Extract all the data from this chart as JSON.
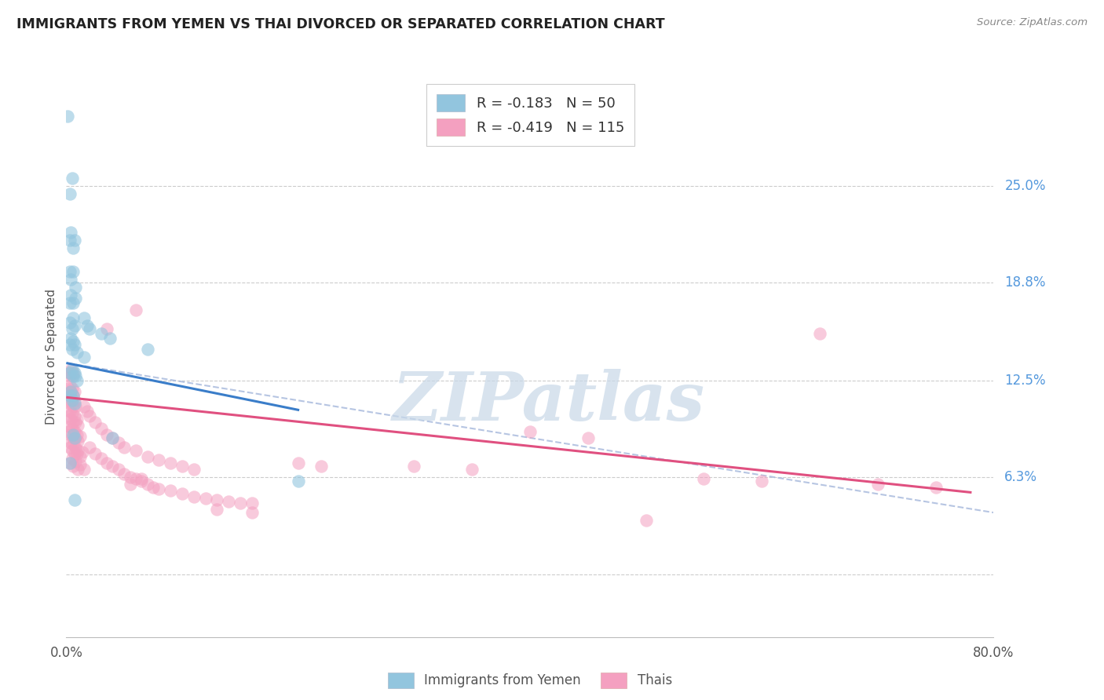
{
  "title": "IMMIGRANTS FROM YEMEN VS THAI DIVORCED OR SEPARATED CORRELATION CHART",
  "source": "Source: ZipAtlas.com",
  "ylabel": "Divorced or Separated",
  "legend1_label": "Immigrants from Yemen",
  "legend2_label": "Thais",
  "legend1_r": "-0.183",
  "legend1_n": "50",
  "legend2_r": "-0.419",
  "legend2_n": "115",
  "color_blue": "#92c5de",
  "color_pink": "#f4a0c0",
  "line_blue": "#3a7dc9",
  "line_pink": "#e05080",
  "line_dash": "#aabbdd",
  "watermark_text": "ZIPatlas",
  "watermark_color": "#c8d8e8",
  "scatter_blue": [
    [
      0.001,
      0.295
    ],
    [
      0.003,
      0.245
    ],
    [
      0.005,
      0.255
    ],
    [
      0.003,
      0.215
    ],
    [
      0.004,
      0.22
    ],
    [
      0.006,
      0.21
    ],
    [
      0.007,
      0.215
    ],
    [
      0.003,
      0.195
    ],
    [
      0.004,
      0.19
    ],
    [
      0.006,
      0.195
    ],
    [
      0.008,
      0.185
    ],
    [
      0.003,
      0.175
    ],
    [
      0.004,
      0.18
    ],
    [
      0.006,
      0.175
    ],
    [
      0.008,
      0.178
    ],
    [
      0.003,
      0.162
    ],
    [
      0.005,
      0.158
    ],
    [
      0.006,
      0.165
    ],
    [
      0.007,
      0.16
    ],
    [
      0.003,
      0.148
    ],
    [
      0.004,
      0.152
    ],
    [
      0.005,
      0.145
    ],
    [
      0.006,
      0.15
    ],
    [
      0.007,
      0.148
    ],
    [
      0.009,
      0.143
    ],
    [
      0.003,
      0.13
    ],
    [
      0.005,
      0.132
    ],
    [
      0.006,
      0.128
    ],
    [
      0.007,
      0.13
    ],
    [
      0.008,
      0.128
    ],
    [
      0.009,
      0.125
    ],
    [
      0.003,
      0.115
    ],
    [
      0.004,
      0.118
    ],
    [
      0.005,
      0.112
    ],
    [
      0.006,
      0.115
    ],
    [
      0.007,
      0.11
    ],
    [
      0.015,
      0.165
    ],
    [
      0.018,
      0.16
    ],
    [
      0.02,
      0.158
    ],
    [
      0.03,
      0.155
    ],
    [
      0.038,
      0.152
    ],
    [
      0.015,
      0.14
    ],
    [
      0.007,
      0.088
    ],
    [
      0.006,
      0.09
    ],
    [
      0.003,
      0.072
    ],
    [
      0.07,
      0.145
    ],
    [
      0.2,
      0.06
    ],
    [
      0.007,
      0.048
    ],
    [
      0.04,
      0.088
    ]
  ],
  "scatter_pink": [
    [
      0.002,
      0.13
    ],
    [
      0.003,
      0.128
    ],
    [
      0.004,
      0.132
    ],
    [
      0.005,
      0.128
    ],
    [
      0.006,
      0.13
    ],
    [
      0.002,
      0.12
    ],
    [
      0.003,
      0.122
    ],
    [
      0.004,
      0.118
    ],
    [
      0.005,
      0.12
    ],
    [
      0.006,
      0.115
    ],
    [
      0.007,
      0.118
    ],
    [
      0.002,
      0.112
    ],
    [
      0.003,
      0.11
    ],
    [
      0.004,
      0.115
    ],
    [
      0.005,
      0.11
    ],
    [
      0.006,
      0.108
    ],
    [
      0.007,
      0.112
    ],
    [
      0.008,
      0.108
    ],
    [
      0.002,
      0.102
    ],
    [
      0.003,
      0.105
    ],
    [
      0.004,
      0.1
    ],
    [
      0.005,
      0.104
    ],
    [
      0.006,
      0.098
    ],
    [
      0.007,
      0.102
    ],
    [
      0.008,
      0.098
    ],
    [
      0.009,
      0.1
    ],
    [
      0.01,
      0.096
    ],
    [
      0.002,
      0.092
    ],
    [
      0.003,
      0.095
    ],
    [
      0.004,
      0.09
    ],
    [
      0.005,
      0.094
    ],
    [
      0.006,
      0.088
    ],
    [
      0.007,
      0.092
    ],
    [
      0.008,
      0.088
    ],
    [
      0.009,
      0.09
    ],
    [
      0.01,
      0.086
    ],
    [
      0.012,
      0.089
    ],
    [
      0.003,
      0.082
    ],
    [
      0.004,
      0.085
    ],
    [
      0.005,
      0.08
    ],
    [
      0.006,
      0.084
    ],
    [
      0.007,
      0.078
    ],
    [
      0.008,
      0.082
    ],
    [
      0.009,
      0.078
    ],
    [
      0.01,
      0.08
    ],
    [
      0.012,
      0.076
    ],
    [
      0.014,
      0.079
    ],
    [
      0.003,
      0.072
    ],
    [
      0.005,
      0.075
    ],
    [
      0.006,
      0.07
    ],
    [
      0.008,
      0.073
    ],
    [
      0.01,
      0.068
    ],
    [
      0.012,
      0.071
    ],
    [
      0.015,
      0.068
    ],
    [
      0.015,
      0.108
    ],
    [
      0.018,
      0.105
    ],
    [
      0.02,
      0.102
    ],
    [
      0.025,
      0.098
    ],
    [
      0.03,
      0.094
    ],
    [
      0.035,
      0.09
    ],
    [
      0.04,
      0.088
    ],
    [
      0.045,
      0.085
    ],
    [
      0.05,
      0.082
    ],
    [
      0.06,
      0.08
    ],
    [
      0.07,
      0.076
    ],
    [
      0.08,
      0.074
    ],
    [
      0.09,
      0.072
    ],
    [
      0.1,
      0.07
    ],
    [
      0.11,
      0.068
    ],
    [
      0.02,
      0.082
    ],
    [
      0.025,
      0.078
    ],
    [
      0.03,
      0.075
    ],
    [
      0.035,
      0.072
    ],
    [
      0.04,
      0.07
    ],
    [
      0.045,
      0.068
    ],
    [
      0.05,
      0.065
    ],
    [
      0.055,
      0.063
    ],
    [
      0.06,
      0.062
    ],
    [
      0.065,
      0.06
    ],
    [
      0.07,
      0.058
    ],
    [
      0.075,
      0.056
    ],
    [
      0.08,
      0.055
    ],
    [
      0.09,
      0.054
    ],
    [
      0.1,
      0.052
    ],
    [
      0.11,
      0.05
    ],
    [
      0.12,
      0.049
    ],
    [
      0.13,
      0.048
    ],
    [
      0.14,
      0.047
    ],
    [
      0.15,
      0.046
    ],
    [
      0.16,
      0.046
    ],
    [
      0.035,
      0.158
    ],
    [
      0.06,
      0.17
    ],
    [
      0.65,
      0.155
    ],
    [
      0.055,
      0.058
    ],
    [
      0.065,
      0.062
    ],
    [
      0.4,
      0.092
    ],
    [
      0.45,
      0.088
    ],
    [
      0.5,
      0.035
    ],
    [
      0.3,
      0.07
    ],
    [
      0.35,
      0.068
    ],
    [
      0.2,
      0.072
    ],
    [
      0.22,
      0.07
    ],
    [
      0.55,
      0.062
    ],
    [
      0.6,
      0.06
    ],
    [
      0.7,
      0.058
    ],
    [
      0.75,
      0.056
    ],
    [
      0.13,
      0.042
    ],
    [
      0.16,
      0.04
    ]
  ],
  "blue_line_x": [
    0.001,
    0.2
  ],
  "blue_line_y": [
    0.136,
    0.106
  ],
  "pink_line_x": [
    0.001,
    0.78
  ],
  "pink_line_y": [
    0.114,
    0.053
  ],
  "dash_line_x": [
    0.001,
    0.8
  ],
  "dash_line_y": [
    0.136,
    0.04
  ],
  "xlim": [
    0.0,
    0.8
  ],
  "ylim": [
    -0.04,
    0.32
  ],
  "ytick_vals": [
    0.0,
    0.063,
    0.125,
    0.188,
    0.25
  ],
  "ytick_labels": [
    "",
    "6.3%",
    "12.5%",
    "18.8%",
    "25.0%"
  ],
  "background_color": "#ffffff",
  "grid_color": "#cccccc"
}
